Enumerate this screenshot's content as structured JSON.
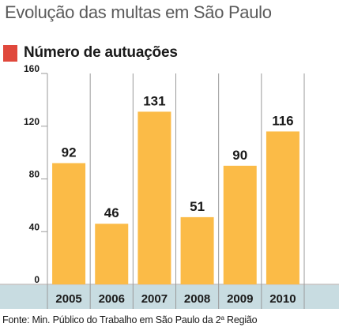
{
  "header": {
    "title": "Evolução das multas em São Paulo"
  },
  "colors": {
    "accent_marker": "#e0483c",
    "bar": "#fbbb47",
    "year_band": "#c8dce1",
    "grid": "#9a9a9a",
    "text": "#1a1a1a"
  },
  "chart_data": {
    "type": "bar",
    "title": "Número de autuações",
    "categories": [
      "2005",
      "2006",
      "2007",
      "2008",
      "2009",
      "2010"
    ],
    "values": [
      92,
      46,
      131,
      51,
      90,
      116
    ],
    "data_labels": [
      "92",
      "46",
      "131",
      "51",
      "90",
      "116"
    ],
    "ylim": [
      0,
      160
    ],
    "yticks": [
      0,
      40,
      80,
      120,
      160
    ],
    "xlabel": "",
    "ylabel": "",
    "grid": "vertical-separators",
    "legend": "none"
  },
  "source": {
    "text": "Fonte: Min. Público do Trabalho em São Paulo da 2",
    "superscript": "a",
    "suffix": " Região"
  }
}
